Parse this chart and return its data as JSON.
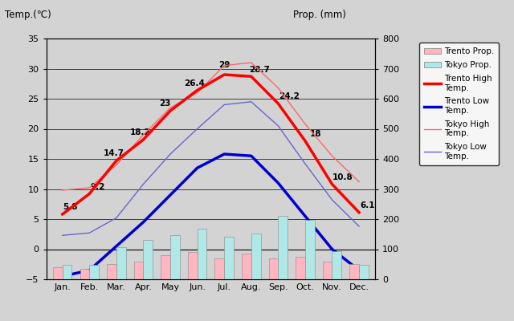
{
  "months": [
    "Jan.",
    "Feb.",
    "Mar.",
    "Apr.",
    "May",
    "Jun.",
    "Jul.",
    "Aug.",
    "Sep.",
    "Oct.",
    "Nov.",
    "Dec."
  ],
  "trento_high": [
    5.8,
    9.2,
    14.7,
    18.2,
    23.0,
    26.4,
    29.0,
    28.7,
    24.2,
    18.0,
    10.8,
    6.1
  ],
  "trento_low": [
    -4.5,
    -3.5,
    0.5,
    4.5,
    9.0,
    13.5,
    15.8,
    15.5,
    11.0,
    5.5,
    0.0,
    -3.5
  ],
  "tokyo_high": [
    9.8,
    10.2,
    14.0,
    19.0,
    23.5,
    26.0,
    30.5,
    31.0,
    26.8,
    20.8,
    15.5,
    11.2
  ],
  "tokyo_low": [
    2.3,
    2.7,
    5.2,
    10.8,
    15.8,
    20.0,
    24.0,
    24.5,
    20.5,
    14.2,
    8.2,
    3.8
  ],
  "trento_precip_mm": [
    40,
    35,
    50,
    60,
    80,
    90,
    70,
    85,
    70,
    75,
    60,
    50
  ],
  "tokyo_precip_mm": [
    48,
    48,
    107,
    130,
    147,
    168,
    142,
    152,
    210,
    198,
    93,
    48
  ],
  "trento_high_labels": [
    "5.8",
    "9.2",
    "14.7",
    "18.2",
    "23",
    "26.4",
    "29",
    "28.7",
    "24.2",
    "18",
    "10.8",
    "6.1"
  ],
  "label_ha": [
    "left",
    "left",
    "left",
    "left",
    "left",
    "left",
    "center",
    "right",
    "right",
    "right",
    "right",
    "right"
  ],
  "label_dx": [
    0.3,
    0.3,
    -0.1,
    -0.1,
    -0.2,
    -0.1,
    0.0,
    0.3,
    0.4,
    0.4,
    0.4,
    0.3
  ],
  "label_dy": [
    0.5,
    0.5,
    0.5,
    0.5,
    0.5,
    0.5,
    1.0,
    0.5,
    0.5,
    0.5,
    0.5,
    0.5
  ],
  "ylim_left": [
    -5,
    35
  ],
  "ylim_right": [
    0,
    800
  ],
  "yticks_left": [
    -5,
    0,
    5,
    10,
    15,
    20,
    25,
    30,
    35
  ],
  "yticks_right": [
    0,
    100,
    200,
    300,
    400,
    500,
    600,
    700,
    800
  ],
  "bar_color_trento": "#ffb6c1",
  "bar_color_tokyo": "#b0e8e8",
  "bg_color": "#d3d3d3",
  "trento_high_color": "#ff0000",
  "trento_low_color": "#0000cc",
  "tokyo_high_color": "#ff6666",
  "tokyo_low_color": "#6666cc"
}
